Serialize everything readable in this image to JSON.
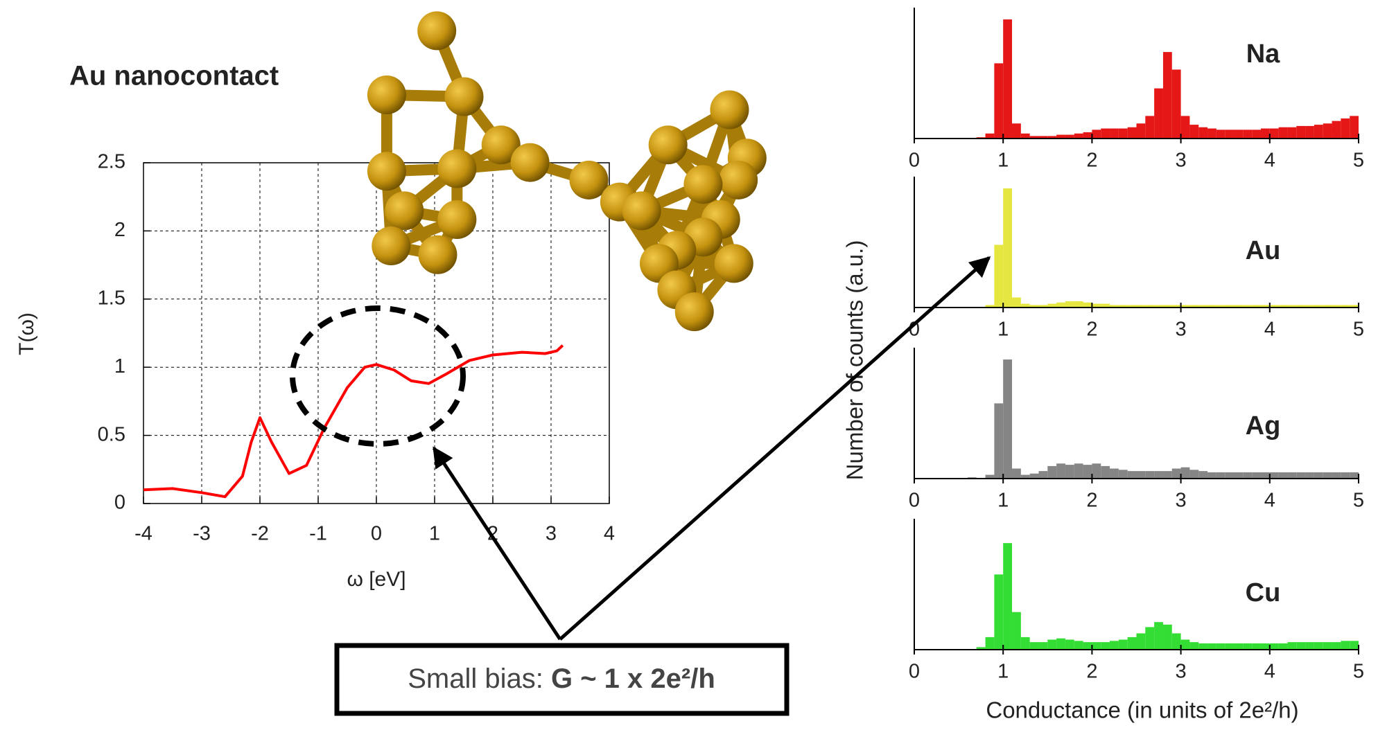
{
  "chart_data": [
    {
      "type": "line",
      "title": "Au nanocontact",
      "xlabel": "ω [eV]",
      "ylabel": "T(ω)",
      "color": "#ff0000",
      "x": [
        -4,
        -3.5,
        -3,
        -2.6,
        -2.3,
        -2.15,
        -2,
        -1.8,
        -1.5,
        -1.2,
        -0.9,
        -0.5,
        -0.2,
        0,
        0.3,
        0.6,
        0.9,
        1.2,
        1.6,
        2,
        2.5,
        2.9,
        3.1,
        3.2
      ],
      "values": [
        0.1,
        0.11,
        0.08,
        0.05,
        0.2,
        0.45,
        0.63,
        0.45,
        0.22,
        0.28,
        0.55,
        0.85,
        1.0,
        1.02,
        0.98,
        0.9,
        0.88,
        0.95,
        1.05,
        1.09,
        1.11,
        1.1,
        1.12,
        1.16
      ],
      "xlim": [
        -4,
        4
      ],
      "ylim": [
        0,
        2.5
      ],
      "xticks": [
        -4,
        -3,
        -2,
        -1,
        0,
        1,
        2,
        3,
        4
      ],
      "yticks": [
        0,
        0.5,
        1,
        1.5,
        2,
        2.5
      ],
      "grid": true
    },
    {
      "type": "histogram",
      "xlabel": "Conductance (in units of 2e²/h)",
      "ylabel": "Number of counts (a.u.)",
      "bins": [
        0,
        0.1,
        0.2,
        0.3,
        0.4,
        0.5,
        0.6,
        0.7,
        0.8,
        0.9,
        1,
        1.1,
        1.2,
        1.3,
        1.4,
        1.5,
        1.6,
        1.7,
        1.8,
        1.9,
        2,
        2.1,
        2.2,
        2.3,
        2.4,
        2.5,
        2.6,
        2.7,
        2.8,
        2.9,
        3,
        3.1,
        3.2,
        3.3,
        3.4,
        3.5,
        3.6,
        3.7,
        3.8,
        3.9,
        4,
        4.1,
        4.2,
        4.3,
        4.4,
        4.5,
        4.6,
        4.7,
        4.8,
        4.9,
        5
      ],
      "xlim": [
        0,
        5
      ],
      "ylim": [
        0,
        100
      ],
      "xticks": [
        0,
        1,
        2,
        3,
        4,
        5
      ],
      "series": [
        {
          "name": "Na",
          "color": "#e51717",
          "values": [
            0,
            0,
            0,
            0,
            0,
            0,
            0,
            1,
            4,
            60,
            95,
            12,
            4,
            2,
            2,
            2,
            3,
            3,
            4,
            5,
            7,
            8,
            8,
            8,
            9,
            12,
            18,
            40,
            69,
            55,
            18,
            11,
            9,
            8,
            7,
            7,
            7,
            7,
            7,
            8,
            8,
            9,
            9,
            10,
            10,
            11,
            12,
            14,
            16,
            18
          ]
        },
        {
          "name": "Au",
          "color": "#e6e640",
          "values": [
            0,
            0,
            0,
            0,
            0,
            0,
            0,
            0,
            2,
            50,
            95,
            8,
            3,
            2,
            2,
            3,
            4,
            5,
            5,
            4,
            3,
            3,
            2,
            2,
            2,
            2,
            2,
            2,
            2,
            2,
            2,
            2,
            2,
            2,
            2,
            2,
            2,
            2,
            2,
            2,
            2,
            2,
            2,
            2,
            2,
            2,
            2,
            2,
            2,
            2
          ]
        },
        {
          "name": "Ag",
          "color": "#858585",
          "values": [
            0,
            0,
            0,
            0,
            0,
            0,
            1,
            0,
            3,
            60,
            95,
            8,
            3,
            4,
            6,
            10,
            12,
            11,
            12,
            11,
            12,
            10,
            8,
            7,
            6,
            6,
            6,
            6,
            6,
            8,
            9,
            7,
            6,
            5,
            5,
            5,
            5,
            5,
            5,
            5,
            5,
            5,
            5,
            5,
            5,
            5,
            5,
            5,
            5,
            5
          ]
        },
        {
          "name": "Cu",
          "color": "#33dd33",
          "values": [
            0,
            0,
            0,
            0,
            0,
            0,
            0,
            2,
            10,
            60,
            85,
            30,
            10,
            6,
            6,
            8,
            9,
            8,
            7,
            6,
            6,
            6,
            7,
            8,
            10,
            13,
            18,
            22,
            20,
            13,
            8,
            6,
            5,
            5,
            5,
            5,
            5,
            5,
            5,
            5,
            5,
            5,
            6,
            6,
            6,
            6,
            6,
            6,
            7,
            7
          ]
        }
      ]
    }
  ],
  "annotation": {
    "prefix": "Small bias:",
    "emphasis": "G ~ 1 x 2e²/h"
  }
}
